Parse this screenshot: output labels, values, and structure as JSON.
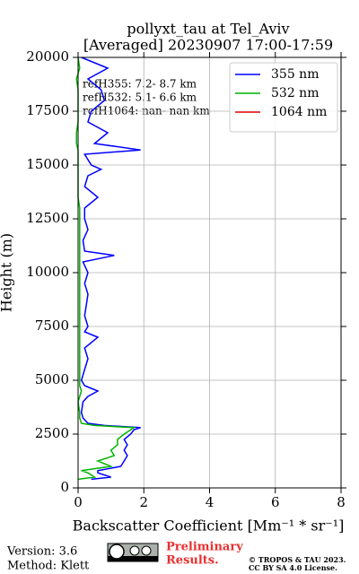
{
  "chart_data": {
    "type": "line",
    "title": [
      "pollyxt_tau at Tel_Aviv",
      "[Averaged] 20230907 17:00-17:59"
    ],
    "x_label": "Backscatter Coefficient [Mm⁻¹ * sr⁻¹]",
    "y_label": "Height (m)",
    "xlim": [
      0,
      8
    ],
    "xticks": [
      0,
      2,
      4,
      6,
      8
    ],
    "ylim": [
      0,
      20000
    ],
    "yticks": [
      0,
      2500,
      5000,
      7500,
      10000,
      12500,
      15000,
      17500,
      20000
    ],
    "grid": true,
    "legend": "upper right",
    "y": [
      400,
      500,
      700,
      800,
      1000,
      1250,
      1500,
      1750,
      2000,
      2250,
      2500,
      2700,
      2800,
      2900,
      3000,
      3250,
      3500,
      4000,
      4250,
      4500,
      4750,
      5000,
      5500,
      6000,
      6500,
      7000,
      7250,
      7500,
      8000,
      8500,
      9000,
      9500,
      10000,
      10500,
      10800,
      11000,
      11500,
      12000,
      12500,
      13000,
      13500,
      14000,
      14500,
      14800,
      15000,
      15500,
      15700,
      16000,
      16500,
      17000,
      17500,
      18000,
      18500,
      19000,
      19500,
      20000
    ],
    "series": [
      {
        "name": "355 nm",
        "color": "#0000ff",
        "values": [
          0.4,
          1.0,
          0.6,
          0.6,
          1.3,
          1.4,
          1.5,
          1.4,
          1.5,
          1.4,
          1.6,
          1.7,
          1.9,
          0.8,
          0.3,
          0.15,
          0.1,
          0.15,
          0.3,
          0.6,
          0.2,
          0.1,
          0.2,
          0.3,
          0.2,
          0.6,
          0.2,
          0.3,
          0.2,
          0.25,
          0.3,
          0.2,
          0.3,
          0.15,
          1.1,
          0.2,
          0.15,
          0.3,
          0.2,
          0.2,
          0.6,
          0.2,
          0.3,
          0.7,
          0.4,
          0.2,
          1.9,
          0.5,
          0.9,
          0.3,
          0.4,
          0.8,
          0.7,
          0.3,
          0.9,
          0.1
        ]
      },
      {
        "name": "532 nm",
        "color": "#00b400",
        "values": [
          0.0,
          0.5,
          0.3,
          0.1,
          1.0,
          0.6,
          1.1,
          1.0,
          1.2,
          1.2,
          1.4,
          1.6,
          1.7,
          0.5,
          0.1,
          0.05,
          0.05,
          0.0,
          0.05,
          0.1,
          0.05,
          0.05,
          0.05,
          0.05,
          0.05,
          0.05,
          0.05,
          0.05,
          0.05,
          0.05,
          0.05,
          0.05,
          0.05,
          0.05,
          0.05,
          0.05,
          0.05,
          0.05,
          0.05,
          0.05,
          0.0,
          0.0,
          0.0,
          0.0,
          0.0,
          0.0,
          0.0,
          -0.05,
          -0.05,
          0.0,
          0.0,
          0.0,
          0.0,
          -0.05,
          0.05,
          0.0
        ]
      },
      {
        "name": "1064 nm",
        "color": "#e00000",
        "values": [
          null,
          null,
          null,
          null,
          null,
          null,
          null,
          null,
          null,
          null,
          null,
          null,
          null,
          null,
          null,
          null,
          null,
          null,
          null,
          null,
          null,
          null,
          null,
          null,
          null,
          null,
          null,
          null,
          null,
          null,
          null,
          null,
          null,
          null,
          null,
          null,
          null,
          null,
          null,
          null,
          null,
          null,
          null,
          null,
          null,
          null,
          null,
          null,
          null,
          null,
          null,
          null,
          null,
          null,
          null,
          null
        ]
      }
    ],
    "annotations": [
      "refH355:  7.2- 8.7 km",
      "refH532:  5.1- 6.6 km",
      "refH1064:  nan- nan km"
    ],
    "footer": {
      "version": "Version: 3.6",
      "method": "Method: Klett",
      "preliminary": [
        "Preliminary",
        "Results."
      ],
      "copyright": [
        "© TROPOS & TAU 2023.",
        "CC BY SA 4.0 License."
      ]
    }
  }
}
